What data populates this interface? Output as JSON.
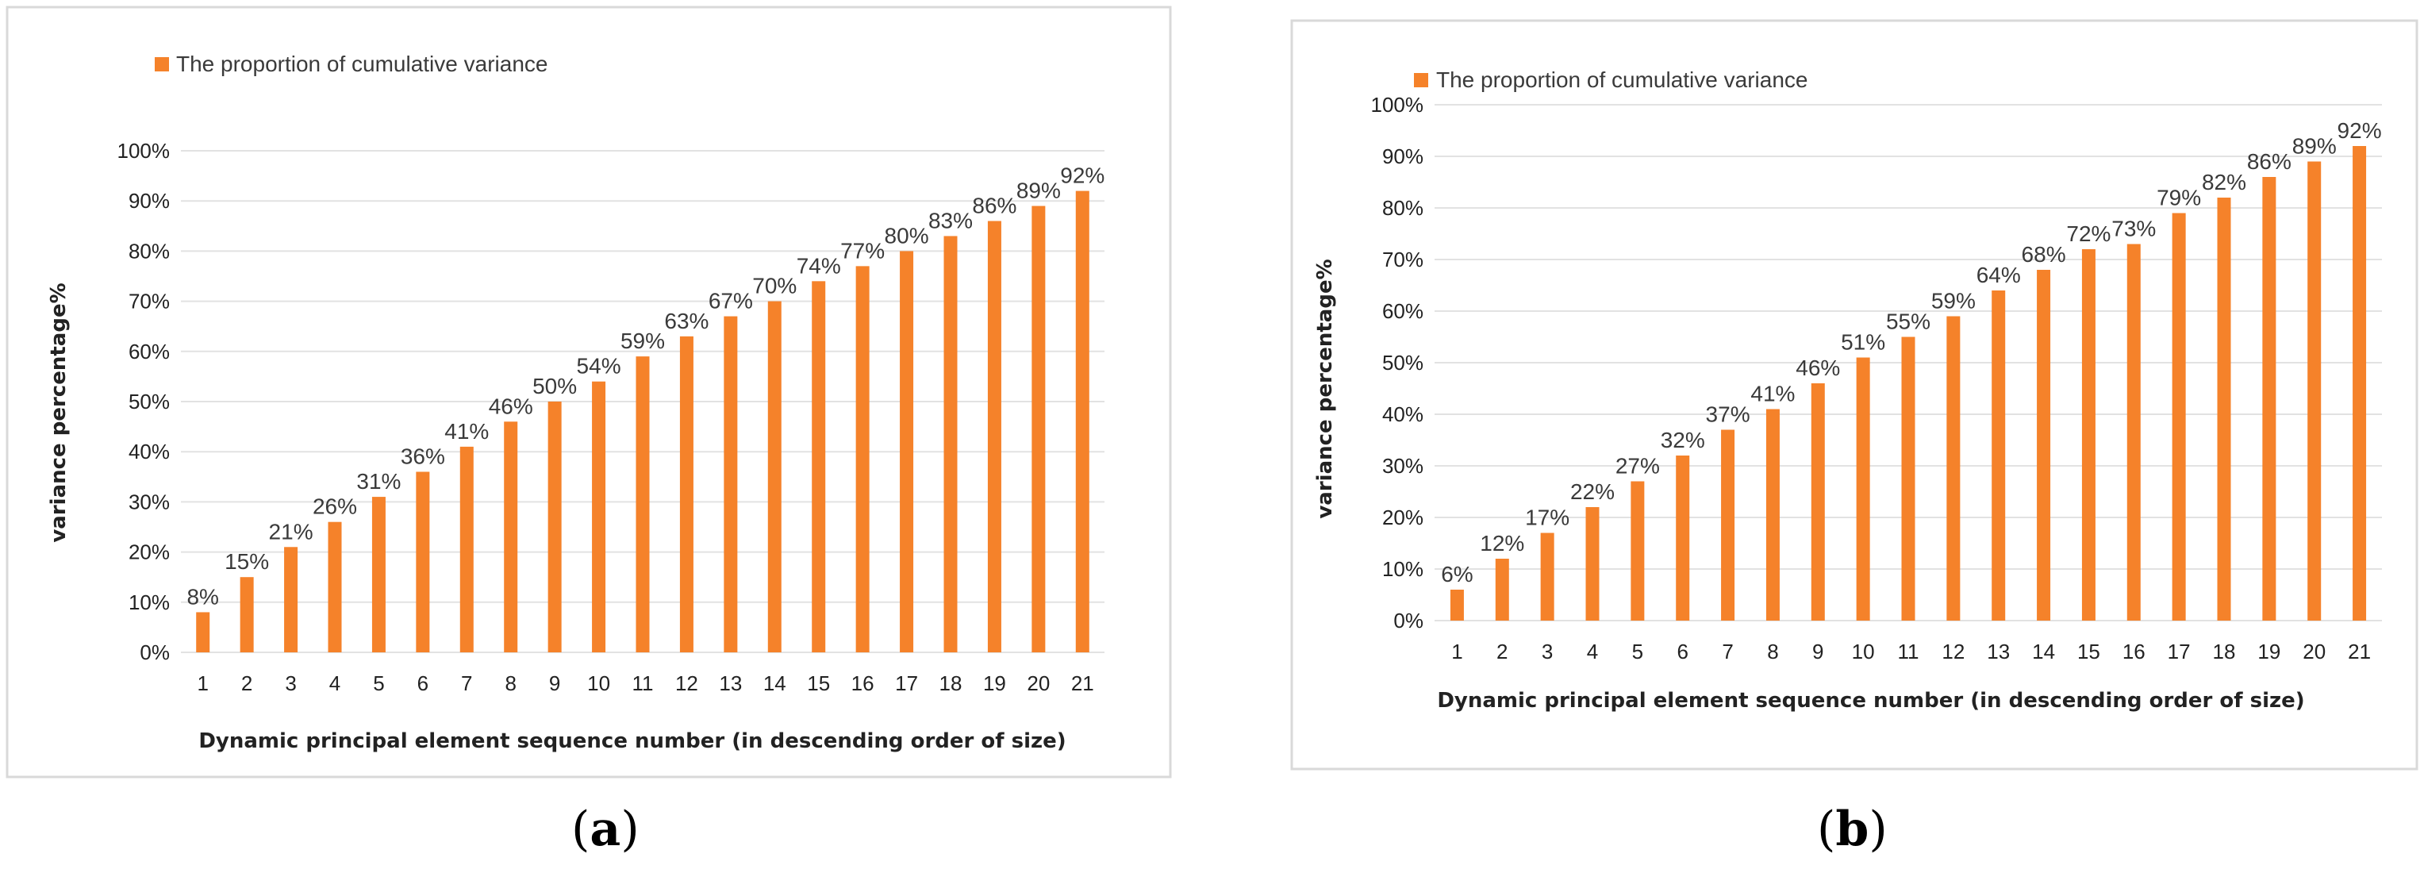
{
  "chart_data": [
    {
      "type": "bar",
      "panel_label": {
        "open": "(",
        "letter": "a",
        "close": ")"
      },
      "legend": [
        "The proportion of cumulative variance"
      ],
      "legend_position": "top-left",
      "xlabel": "Dynamic principal element sequence number (in descending order of size)",
      "ylabel": "variance  percentage%",
      "ylim": [
        0,
        100
      ],
      "yticks": [
        "0%",
        "10%",
        "20%",
        "30%",
        "40%",
        "50%",
        "60%",
        "70%",
        "80%",
        "90%",
        "100%"
      ],
      "grid": true,
      "categories": [
        "1",
        "2",
        "3",
        "4",
        "5",
        "6",
        "7",
        "8",
        "9",
        "10",
        "11",
        "12",
        "13",
        "14",
        "15",
        "16",
        "17",
        "18",
        "19",
        "20",
        "21"
      ],
      "series": [
        {
          "name": "The proportion of cumulative variance",
          "values": [
            8,
            15,
            21,
            26,
            31,
            36,
            41,
            46,
            50,
            54,
            59,
            63,
            67,
            70,
            74,
            77,
            80,
            83,
            86,
            89,
            92
          ],
          "labels": [
            "8%",
            "15%",
            "21%",
            "26%",
            "31%",
            "36%",
            "41%",
            "46%",
            "50%",
            "54%",
            "59%",
            "63%",
            "67%",
            "70%",
            "74%",
            "77%",
            "80%",
            "83%",
            "86%",
            "89%",
            "92%"
          ]
        }
      ],
      "colors": {
        "bar": "#f5822a"
      }
    },
    {
      "type": "bar",
      "panel_label": {
        "open": "(",
        "letter": "b",
        "close": ")"
      },
      "legend": [
        "The proportion of cumulative variance"
      ],
      "legend_position": "top-left",
      "xlabel": "Dynamic principal element sequence number (in descending order of size)",
      "ylabel": "variance  percentage%",
      "ylim": [
        0,
        100
      ],
      "yticks": [
        "0%",
        "10%",
        "20%",
        "30%",
        "40%",
        "50%",
        "60%",
        "70%",
        "80%",
        "90%",
        "100%"
      ],
      "grid": true,
      "categories": [
        "1",
        "2",
        "3",
        "4",
        "5",
        "6",
        "7",
        "8",
        "9",
        "10",
        "11",
        "12",
        "13",
        "14",
        "15",
        "16",
        "17",
        "18",
        "19",
        "20",
        "21"
      ],
      "series": [
        {
          "name": "The proportion of cumulative variance",
          "values": [
            6,
            12,
            17,
            22,
            27,
            32,
            37,
            41,
            46,
            51,
            55,
            59,
            64,
            68,
            72,
            73,
            79,
            82,
            86,
            89,
            92
          ],
          "labels": [
            "6%",
            "12%",
            "17%",
            "22%",
            "27%",
            "32%",
            "37%",
            "41%",
            "46%",
            "51%",
            "55%",
            "59%",
            "64%",
            "68%",
            "72%",
            "73%",
            "79%",
            "82%",
            "86%",
            "89%",
            "92%"
          ]
        }
      ],
      "colors": {
        "bar": "#f5822a"
      }
    }
  ]
}
